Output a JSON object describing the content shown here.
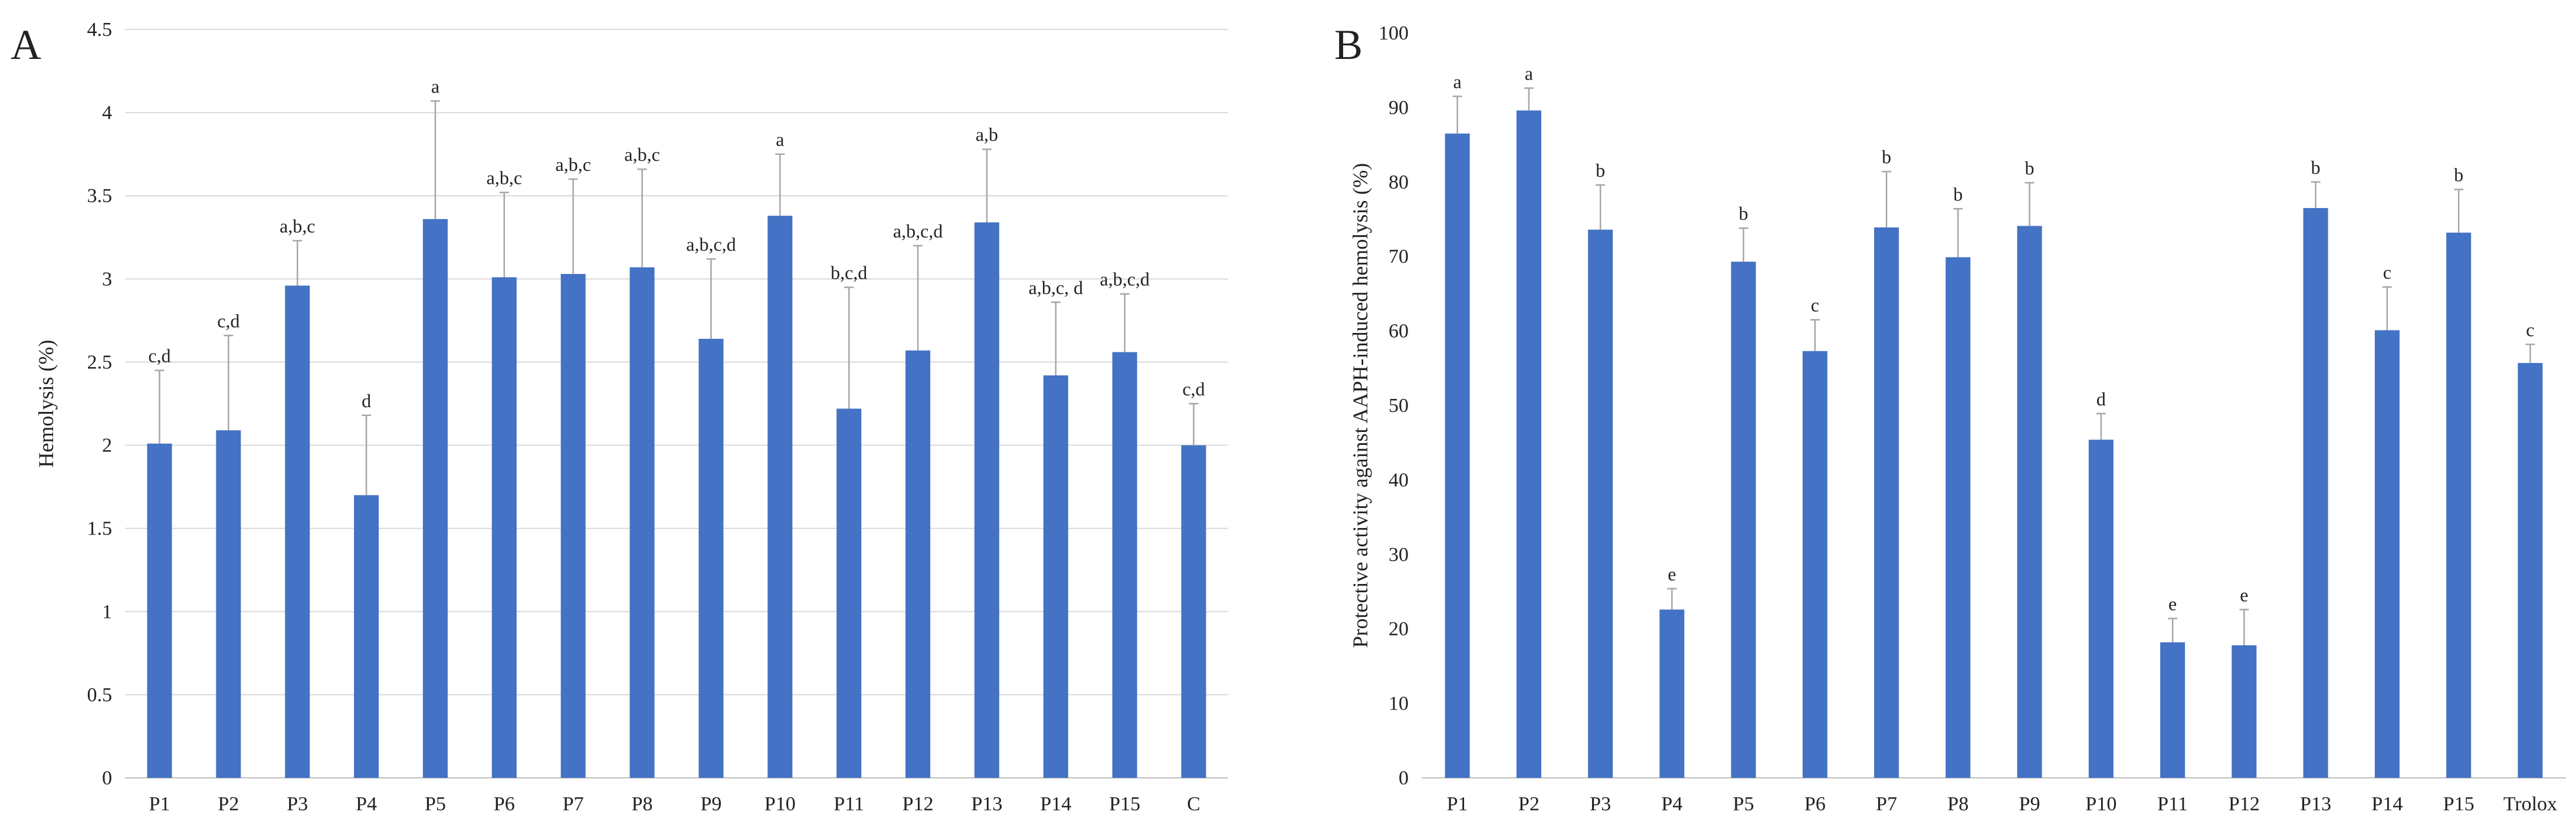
{
  "colors": {
    "bar": "#4472C4",
    "error_bar": "#a6a6a6",
    "grid": "#d9d9d9",
    "text": "#222222"
  },
  "chart_data": [
    {
      "panel_label": "A",
      "type": "bar",
      "title": "",
      "xlabel": "",
      "ylabel": "Hemolysis (%)",
      "ylim": [
        0,
        4.5
      ],
      "yticks": [
        "0",
        "0.5",
        "1",
        "1.5",
        "2",
        "2.5",
        "3",
        "3.5",
        "4",
        "4.5"
      ],
      "ytick_values": [
        0,
        0.5,
        1,
        1.5,
        2,
        2.5,
        3,
        3.5,
        4,
        4.5
      ],
      "grid": true,
      "categories": [
        "P1",
        "P2",
        "P3",
        "P4",
        "P5",
        "P6",
        "P7",
        "P8",
        "P9",
        "P10",
        "P11",
        "P12",
        "P13",
        "P14",
        "P15",
        "C"
      ],
      "values": [
        2.01,
        2.09,
        2.96,
        1.7,
        3.36,
        3.01,
        3.03,
        3.07,
        2.64,
        3.38,
        2.22,
        2.57,
        3.34,
        2.42,
        2.56,
        2.0
      ],
      "errors": [
        0.44,
        0.57,
        0.27,
        0.48,
        0.71,
        0.51,
        0.57,
        0.59,
        0.48,
        0.37,
        0.73,
        0.63,
        0.44,
        0.44,
        0.35,
        0.25
      ],
      "annotations": [
        "c,d",
        "c,d",
        "a,b,c",
        "d",
        "a",
        "a,b,c",
        "a,b,c",
        "a,b,c",
        "a,b,c,d",
        "a",
        "b,c,d",
        "a,b,c,d",
        "a,b",
        "a,b,c, d",
        "a,b,c,d",
        "c,d"
      ]
    },
    {
      "panel_label": "B",
      "type": "bar",
      "title": "",
      "xlabel": "",
      "ylabel": "Protective activity against AAPH-induced hemolysis (%)",
      "ylim": [
        0,
        100
      ],
      "yticks": [
        "0",
        "10",
        "20",
        "30",
        "40",
        "50",
        "60",
        "70",
        "80",
        "90",
        "100"
      ],
      "ytick_values": [
        0,
        10,
        20,
        30,
        40,
        50,
        60,
        70,
        80,
        90,
        100
      ],
      "grid": false,
      "categories": [
        "P1",
        "P2",
        "P3",
        "P4",
        "P5",
        "P6",
        "P7",
        "P8",
        "P9",
        "P10",
        "P11",
        "P12",
        "P13",
        "P14",
        "P15",
        "Trolox"
      ],
      "values": [
        86.5,
        89.6,
        73.6,
        22.6,
        69.3,
        57.3,
        73.9,
        69.9,
        74.1,
        45.4,
        18.2,
        17.8,
        76.5,
        60.1,
        73.2,
        55.7
      ],
      "errors": [
        5.0,
        3.0,
        6.0,
        2.8,
        4.5,
        4.2,
        7.5,
        6.5,
        5.8,
        3.5,
        3.2,
        4.8,
        3.5,
        5.8,
        5.8,
        2.5
      ],
      "annotations": [
        "a",
        "a",
        "b",
        "e",
        "b",
        "c",
        "b",
        "b",
        "b",
        "d",
        "e",
        "e",
        "b",
        "c",
        "b",
        "c"
      ]
    }
  ]
}
